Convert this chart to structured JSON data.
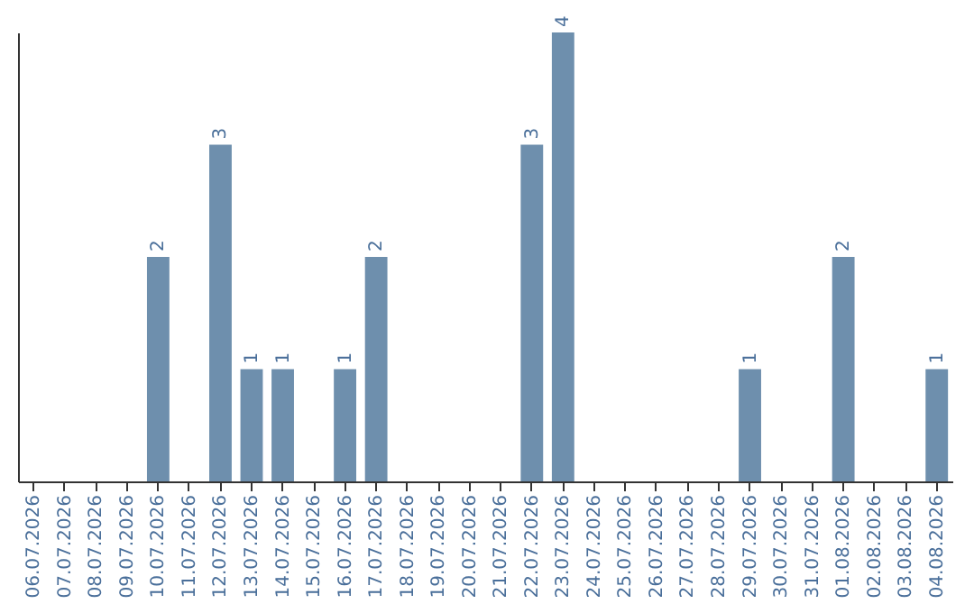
{
  "chart_data": {
    "type": "bar",
    "categories": [
      "06.07.2026",
      "07.07.2026",
      "08.07.2026",
      "09.07.2026",
      "10.07.2026",
      "11.07.2026",
      "12.07.2026",
      "13.07.2026",
      "14.07.2026",
      "15.07.2026",
      "16.07.2026",
      "17.07.2026",
      "18.07.2026",
      "19.07.2026",
      "20.07.2026",
      "21.07.2026",
      "22.07.2026",
      "23.07.2026",
      "24.07.2026",
      "25.07.2026",
      "26.07.2026",
      "27.07.2026",
      "28.07.2026",
      "29.07.2026",
      "30.07.2026",
      "31.07.2026",
      "01.08.2026",
      "02.08.2026",
      "03.08.2026",
      "04.08.2026"
    ],
    "values": [
      null,
      null,
      null,
      null,
      2,
      null,
      3,
      1,
      1,
      null,
      1,
      2,
      null,
      null,
      null,
      null,
      3,
      4,
      null,
      null,
      null,
      null,
      null,
      1,
      null,
      null,
      2,
      null,
      null,
      1
    ],
    "color": "#6e8fad",
    "data_labels": true,
    "grid": false,
    "tick_labels": "x"
  }
}
